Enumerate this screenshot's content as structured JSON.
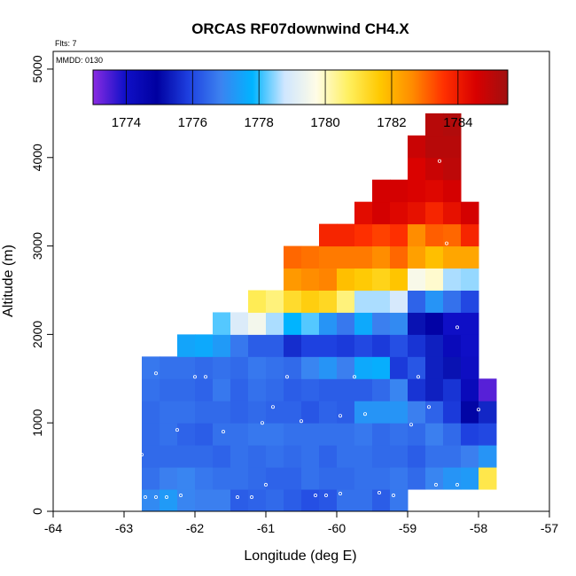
{
  "chart_data": {
    "type": "heatmap",
    "title": "ORCAS RF07downwind CH4.X",
    "xlabel": "Longitude (deg E)",
    "ylabel": "Altitude (m)",
    "xlim": [
      -64,
      -57
    ],
    "ylim": [
      0,
      5200
    ],
    "x_ticks": [
      -64,
      -63,
      -62,
      -61,
      -60,
      -59,
      -58,
      -57
    ],
    "y_ticks": [
      0,
      1000,
      2000,
      3000,
      4000,
      5000
    ],
    "annotations": {
      "flights": "Flts: 7",
      "date": "MMDD: 0130"
    },
    "colorbar": {
      "min": 1773,
      "max": 1785.5,
      "ticks": [
        1774,
        1776,
        1778,
        1780,
        1782,
        1784
      ],
      "colors": [
        "#8a2be2",
        "#1010c8",
        "#0000a0",
        "#1e40e0",
        "#3c82f0",
        "#00b4ff",
        "#cfe6ff",
        "#fffce6",
        "#fff060",
        "#ffc800",
        "#ff8c00",
        "#ff3000",
        "#d80000",
        "#a01010"
      ]
    },
    "cell_width_deg": 0.25,
    "cell_height_m": 250,
    "columns": [
      {
        "x0": -62.75,
        "z0": 0,
        "v": [
          1777.0,
          1776.6,
          1776.5,
          1776.5,
          1776.5,
          1776.6,
          1776.7
        ]
      },
      {
        "x0": -62.5,
        "z0": 0,
        "v": [
          1777.3,
          1776.8,
          1776.5,
          1776.6,
          1776.6,
          1776.5,
          1776.6
        ]
      },
      {
        "x0": -62.25,
        "z0": 0,
        "v": [
          1776.9,
          1776.9,
          1776.5,
          1776.4,
          1776.6,
          1776.5,
          1776.6,
          1777.5
        ]
      },
      {
        "x0": -62.0,
        "z0": 0,
        "v": [
          1776.8,
          1776.7,
          1776.5,
          1776.3,
          1776.5,
          1776.4,
          1776.5,
          1777.6
        ]
      },
      {
        "x0": -61.75,
        "z0": 0,
        "v": [
          1776.8,
          1776.6,
          1776.4,
          1776.6,
          1776.5,
          1776.7,
          1776.6,
          1777.3,
          1778.2
        ]
      },
      {
        "x0": -61.5,
        "z0": 0,
        "v": [
          1776.3,
          1776.6,
          1776.6,
          1776.6,
          1776.4,
          1776.4,
          1776.5,
          1776.7,
          1779.0
        ]
      },
      {
        "x0": -61.25,
        "z0": 0,
        "v": [
          1776.4,
          1776.5,
          1776.5,
          1776.7,
          1776.5,
          1776.6,
          1776.7,
          1776.3,
          1779.5,
          1780.8
        ]
      },
      {
        "x0": -61.0,
        "z0": 0,
        "v": [
          1776.5,
          1776.4,
          1776.6,
          1776.7,
          1776.4,
          1776.5,
          1776.6,
          1776.3,
          1778.6,
          1780.5
        ]
      },
      {
        "x0": -60.75,
        "z0": 0,
        "v": [
          1776.3,
          1776.4,
          1776.5,
          1776.6,
          1776.4,
          1776.3,
          1776.5,
          1775.6,
          1777.8,
          1781.2,
          1782.4,
          1783.0
        ]
      },
      {
        "x0": -60.5,
        "z0": 0,
        "v": [
          1776.1,
          1776.6,
          1776.6,
          1776.6,
          1776.2,
          1776.4,
          1776.9,
          1775.9,
          1778.2,
          1781.5,
          1782.6,
          1782.9
        ]
      },
      {
        "x0": -60.25,
        "z0": 0,
        "v": [
          1776.2,
          1776.5,
          1776.4,
          1776.6,
          1776.4,
          1776.3,
          1777.2,
          1775.9,
          1777.2,
          1781.3,
          1782.7,
          1782.8,
          1783.8
        ]
      },
      {
        "x0": -60.0,
        "z0": 0,
        "v": [
          1776.6,
          1776.5,
          1776.6,
          1776.6,
          1776.3,
          1776.3,
          1776.8,
          1775.8,
          1776.7,
          1780.5,
          1781.8,
          1782.8,
          1783.8
        ]
      },
      {
        "x0": -59.75,
        "z0": 0,
        "v": [
          1776.6,
          1776.6,
          1776.6,
          1776.7,
          1777.2,
          1776.3,
          1777.6,
          1776.0,
          1777.6,
          1778.6,
          1781.6,
          1782.8,
          1783.6,
          1784.3
        ]
      },
      {
        "x0": -59.5,
        "z0": 0,
        "v": [
          1776.3,
          1776.6,
          1776.5,
          1776.5,
          1777.2,
          1776.5,
          1777.7,
          1775.8,
          1776.8,
          1778.6,
          1781.4,
          1782.6,
          1783.4,
          1784.6,
          1784.6
        ]
      },
      {
        "x0": -59.25,
        "z0": 0,
        "v": [
          1776.7,
          1776.7,
          1776.5,
          1776.6,
          1777.2,
          1776.9,
          1775.8,
          1776.1,
          1777.0,
          1778.9,
          1781.7,
          1783.0,
          1783.6,
          1784.4,
          1784.6
        ]
      },
      {
        "x0": -59.0,
        "z0": 250,
        "v": [
          1776.5,
          1776.3,
          1776.5,
          1776.8,
          1775.7,
          1776.2,
          1775.7,
          1775.2,
          1776.4,
          1779.6,
          1782.3,
          1782.6,
          1784.2,
          1784.5,
          1784.5,
          1784.8
        ]
      },
      {
        "x0": -58.75,
        "z0": 250,
        "v": [
          1776.9,
          1776.6,
          1776.8,
          1776.4,
          1775.4,
          1775.4,
          1775.4,
          1774.8,
          1777.2,
          1779.9,
          1781.8,
          1783.1,
          1783.8,
          1784.4,
          1784.8,
          1785.1,
          1785.1
        ]
      },
      {
        "x0": -58.5,
        "z0": 250,
        "v": [
          1777.2,
          1776.6,
          1776.5,
          1775.8,
          1775.7,
          1775.2,
          1774.3,
          1774.0,
          1776.6,
          1778.6,
          1782.2,
          1783.0,
          1784.2,
          1784.6,
          1785.0,
          1785.1,
          1785.2
        ]
      },
      {
        "x0": -58.25,
        "z0": 250,
        "v": [
          1777.3,
          1776.8,
          1775.9,
          1775.0,
          1774.3,
          1774.1,
          1774.0,
          1774.0,
          1776.0,
          1778.5,
          1782.2,
          1783.8,
          1784.6
        ]
      },
      {
        "x0": -58.0,
        "z0": 250,
        "v": [
          1780.9,
          1777.2,
          1776.0,
          1775.5,
          1773.4
        ]
      }
    ],
    "sample_points": [
      [
        -62.7,
        160
      ],
      [
        -62.55,
        160
      ],
      [
        -62.4,
        160
      ],
      [
        -62.2,
        180
      ],
      [
        -61.4,
        160
      ],
      [
        -61.2,
        160
      ],
      [
        -60.3,
        180
      ],
      [
        -60.15,
        180
      ],
      [
        -59.95,
        200
      ],
      [
        -59.4,
        210
      ],
      [
        -59.2,
        180
      ],
      [
        -61.0,
        300
      ],
      [
        -58.6,
        300
      ],
      [
        -58.3,
        300
      ],
      [
        -62.75,
        640
      ],
      [
        -62.25,
        920
      ],
      [
        -61.6,
        900
      ],
      [
        -61.05,
        1000
      ],
      [
        -60.9,
        1180
      ],
      [
        -60.5,
        1020
      ],
      [
        -59.95,
        1080
      ],
      [
        -59.6,
        1100
      ],
      [
        -58.95,
        980
      ],
      [
        -58.7,
        1180
      ],
      [
        -58.0,
        1150
      ],
      [
        -62.55,
        1560
      ],
      [
        -62.0,
        1520
      ],
      [
        -61.85,
        1520
      ],
      [
        -60.7,
        1520
      ],
      [
        -59.75,
        1520
      ],
      [
        -58.85,
        1520
      ],
      [
        -58.3,
        2080
      ],
      [
        -58.45,
        3030
      ],
      [
        -58.55,
        3960
      ]
    ]
  }
}
